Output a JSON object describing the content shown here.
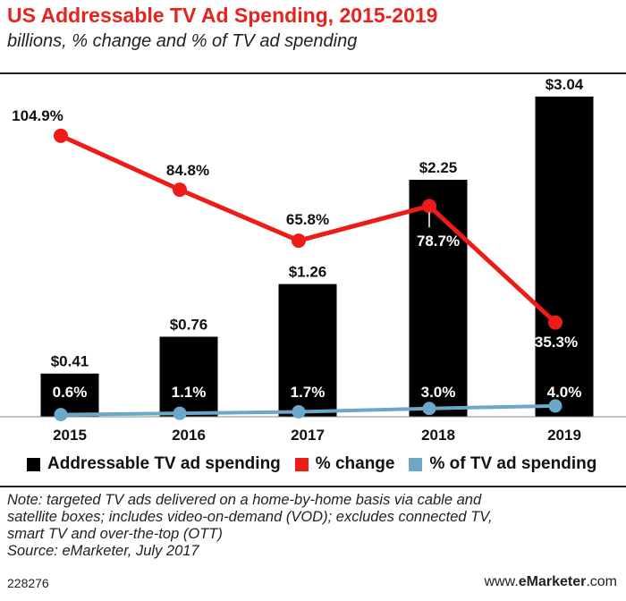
{
  "header": {
    "title": "US Addressable TV Ad Spending, 2015-2019",
    "subtitle": "billions, % change and % of TV ad spending"
  },
  "chart_data": {
    "type": "bar",
    "categories": [
      "2015",
      "2016",
      "2017",
      "2018",
      "2019"
    ],
    "bars": {
      "name": "Addressable TV ad spending",
      "values": [
        0.41,
        0.76,
        1.26,
        2.25,
        3.04
      ],
      "labels": [
        "$0.41",
        "$0.76",
        "$1.26",
        "$2.25",
        "$3.04"
      ],
      "color": "#000000"
    },
    "series": [
      {
        "name": "% change",
        "type": "line",
        "values": [
          104.9,
          84.8,
          65.8,
          78.7,
          35.3
        ],
        "labels": [
          "104.9%",
          "84.8%",
          "65.8%",
          "78.7%",
          "35.3%"
        ],
        "color": "#ee1c18"
      },
      {
        "name": "% of TV ad spending",
        "type": "line",
        "values": [
          0.6,
          1.1,
          1.7,
          3.0,
          4.0
        ],
        "labels": [
          "0.6%",
          "1.1%",
          "1.7%",
          "3.0%",
          "4.0%"
        ],
        "color": "#6aa7c8"
      }
    ],
    "legend_position": "bottom",
    "grid": false
  },
  "footer": {
    "note_lines": [
      "Note: targeted TV ads delivered on a home-by-home basis via cable and",
      "satellite boxes; includes video-on-demand (VOD); excludes connected TV,",
      "smart TV and over-the-top (OTT)",
      "Source: eMarketer, July 2017"
    ],
    "chart_id": "228276",
    "brand_prefix": "www.",
    "brand_name": "eMarketer",
    "brand_suffix": ".com"
  }
}
